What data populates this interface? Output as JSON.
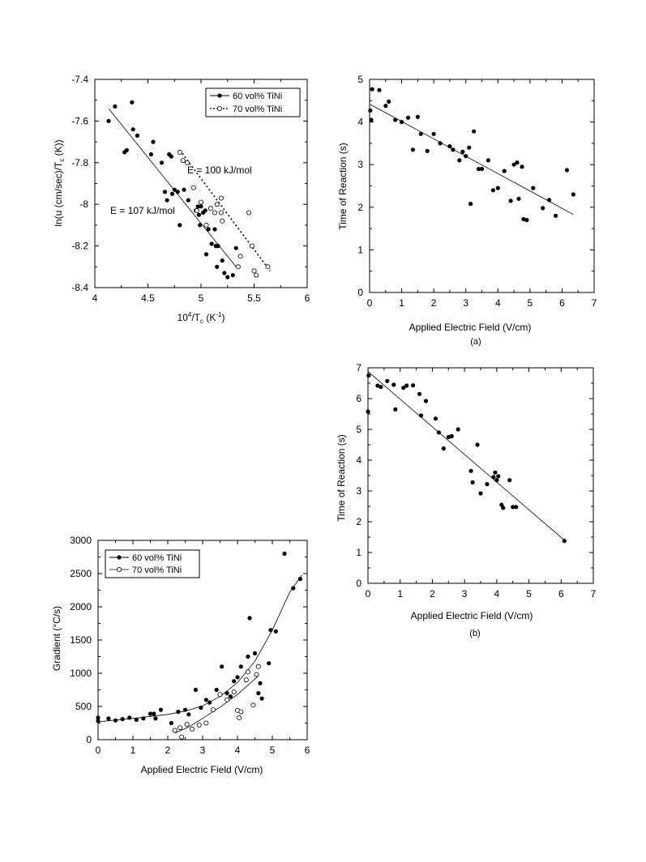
{
  "chart_data": [
    {
      "type": "scatter",
      "xlabel_main": "10",
      "xlabel_sup": "4",
      "xlabel_rest": "/T",
      "xlabel_sub": "c",
      "xlabel_unit": " (K",
      "xlabel_unit_sup": "-1",
      "xlabel_close": ")",
      "ylabel_main": "ln(u (cm/sec)/T",
      "ylabel_sub": "c",
      "ylabel_close": " (K))",
      "xlim": [
        4,
        6
      ],
      "ylim": [
        -8.4,
        -7.4
      ],
      "xticks": [
        "4",
        "4.5",
        "5",
        "5.5",
        "6"
      ],
      "yticks": [
        "-7.4",
        "-7.6",
        "-7.8",
        "-8",
        "-8.2",
        "-8.4"
      ],
      "legend": [
        "60 vol% TiNi",
        "70 vol% TiNi"
      ],
      "annotations": [
        "E = 100 kJ/mol",
        "E = 107 kJ/mol"
      ],
      "series": [
        {
          "name": "60 vol% TiNi",
          "marker": "filled",
          "points": [
            [
              4.13,
              -7.6
            ],
            [
              4.19,
              -7.53
            ],
            [
              4.28,
              -7.75
            ],
            [
              4.3,
              -7.74
            ],
            [
              4.35,
              -7.51
            ],
            [
              4.36,
              -7.64
            ],
            [
              4.4,
              -7.67
            ],
            [
              4.53,
              -7.76
            ],
            [
              4.55,
              -7.7
            ],
            [
              4.63,
              -7.8
            ],
            [
              4.66,
              -7.94
            ],
            [
              4.68,
              -7.98
            ],
            [
              4.7,
              -7.76
            ],
            [
              4.72,
              -7.77
            ],
            [
              4.73,
              -7.95
            ],
            [
              4.75,
              -7.93
            ],
            [
              4.78,
              -7.94
            ],
            [
              4.8,
              -8.1
            ],
            [
              4.84,
              -7.93
            ],
            [
              4.88,
              -7.98
            ],
            [
              4.95,
              -8.03
            ],
            [
              4.97,
              -8.01
            ],
            [
              4.98,
              -8.05
            ],
            [
              4.99,
              -8.1
            ],
            [
              5.0,
              -8.01
            ],
            [
              5.02,
              -8.04
            ],
            [
              5.04,
              -8.03
            ],
            [
              5.05,
              -8.24
            ],
            [
              5.07,
              -8.12
            ],
            [
              5.1,
              -8.19
            ],
            [
              5.13,
              -8.12
            ],
            [
              5.14,
              -8.2
            ],
            [
              5.15,
              -8.3
            ],
            [
              5.16,
              -8.2
            ],
            [
              5.2,
              -8.27
            ],
            [
              5.22,
              -8.33
            ],
            [
              5.25,
              -8.35
            ],
            [
              5.3,
              -8.34
            ],
            [
              5.33,
              -8.21
            ]
          ],
          "fit": [
            [
              4.13,
              -7.54
            ],
            [
              5.33,
              -8.3
            ]
          ]
        },
        {
          "name": "70 vol% TiNi",
          "marker": "open",
          "points": [
            [
              4.8,
              -7.75
            ],
            [
              4.83,
              -7.79
            ],
            [
              4.87,
              -7.8
            ],
            [
              4.93,
              -7.92
            ],
            [
              4.96,
              -8.03
            ],
            [
              5.0,
              -7.99
            ],
            [
              5.05,
              -8.1
            ],
            [
              5.09,
              -8.02
            ],
            [
              5.13,
              -8.04
            ],
            [
              5.15,
              -8.0
            ],
            [
              5.19,
              -8.04
            ],
            [
              5.19,
              -7.97
            ],
            [
              5.2,
              -8.08
            ],
            [
              5.35,
              -8.3
            ],
            [
              5.37,
              -8.25
            ],
            [
              5.45,
              -8.04
            ],
            [
              5.48,
              -8.2
            ],
            [
              5.5,
              -8.32
            ],
            [
              5.52,
              -8.34
            ],
            [
              5.63,
              -8.3
            ]
          ],
          "fit": [
            [
              4.8,
              -7.74
            ],
            [
              5.65,
              -8.32
            ]
          ]
        }
      ]
    },
    {
      "type": "scatter",
      "xlabel": "Applied Electric Field (V/cm)",
      "ylabel": "Time of Reaction (s)",
      "caption": "(a)",
      "xlim": [
        0,
        7
      ],
      "ylim": [
        0,
        5
      ],
      "xticks": [
        "0",
        "1",
        "2",
        "3",
        "4",
        "5",
        "6",
        "7"
      ],
      "yticks": [
        "0",
        "1",
        "2",
        "3",
        "4",
        "5"
      ],
      "series": [
        {
          "marker": "filled",
          "points": [
            [
              0.02,
              4.27
            ],
            [
              0.05,
              4.05
            ],
            [
              0.08,
              4.77
            ],
            [
              0.3,
              4.75
            ],
            [
              0.5,
              4.38
            ],
            [
              0.6,
              4.48
            ],
            [
              0.8,
              4.05
            ],
            [
              1.0,
              4.0
            ],
            [
              1.2,
              4.1
            ],
            [
              1.35,
              3.35
            ],
            [
              1.5,
              4.12
            ],
            [
              1.6,
              3.72
            ],
            [
              1.8,
              3.32
            ],
            [
              2.0,
              3.72
            ],
            [
              2.2,
              3.5
            ],
            [
              2.5,
              3.43
            ],
            [
              2.6,
              3.35
            ],
            [
              2.8,
              3.1
            ],
            [
              2.9,
              3.3
            ],
            [
              3.0,
              3.2
            ],
            [
              3.1,
              3.4
            ],
            [
              3.15,
              2.08
            ],
            [
              3.25,
              3.78
            ],
            [
              3.4,
              2.9
            ],
            [
              3.5,
              2.9
            ],
            [
              3.7,
              3.1
            ],
            [
              3.85,
              2.4
            ],
            [
              4.0,
              2.45
            ],
            [
              4.2,
              2.85
            ],
            [
              4.4,
              2.15
            ],
            [
              4.5,
              3.0
            ],
            [
              4.6,
              3.05
            ],
            [
              4.65,
              2.2
            ],
            [
              4.75,
              2.95
            ],
            [
              4.8,
              1.72
            ],
            [
              4.9,
              1.7
            ],
            [
              5.1,
              2.45
            ],
            [
              5.4,
              1.98
            ],
            [
              5.6,
              2.17
            ],
            [
              5.8,
              1.8
            ],
            [
              6.15,
              2.87
            ],
            [
              6.35,
              2.3
            ]
          ],
          "fit": [
            [
              0.0,
              4.42
            ],
            [
              6.35,
              1.83
            ]
          ]
        }
      ]
    },
    {
      "type": "scatter",
      "xlabel": "Applied Electric Field (V/cm)",
      "ylabel": "Time of Reaction (s)",
      "caption": "(b)",
      "xlim": [
        0,
        7
      ],
      "ylim": [
        0,
        7
      ],
      "xticks": [
        "0",
        "1",
        "2",
        "3",
        "4",
        "5",
        "6",
        "7"
      ],
      "yticks": [
        "0",
        "1",
        "2",
        "3",
        "4",
        "5",
        "6",
        "7"
      ],
      "series": [
        {
          "marker": "filled",
          "points": [
            [
              0.0,
              5.58
            ],
            [
              0.02,
              6.75
            ],
            [
              0.3,
              6.42
            ],
            [
              0.4,
              6.38
            ],
            [
              0.6,
              6.57
            ],
            [
              0.8,
              6.45
            ],
            [
              0.85,
              5.65
            ],
            [
              1.1,
              6.35
            ],
            [
              1.2,
              6.42
            ],
            [
              1.4,
              6.43
            ],
            [
              1.6,
              6.15
            ],
            [
              1.65,
              5.45
            ],
            [
              1.8,
              5.92
            ],
            [
              2.1,
              5.35
            ],
            [
              2.2,
              4.9
            ],
            [
              2.35,
              4.38
            ],
            [
              2.5,
              4.75
            ],
            [
              2.6,
              4.78
            ],
            [
              2.8,
              5.0
            ],
            [
              3.2,
              3.65
            ],
            [
              3.25,
              3.28
            ],
            [
              3.4,
              4.5
            ],
            [
              3.5,
              2.92
            ],
            [
              3.7,
              3.22
            ],
            [
              3.9,
              3.45
            ],
            [
              3.95,
              3.6
            ],
            [
              4.0,
              3.35
            ],
            [
              4.05,
              3.48
            ],
            [
              4.15,
              2.55
            ],
            [
              4.2,
              2.45
            ],
            [
              4.4,
              3.35
            ],
            [
              4.5,
              2.48
            ],
            [
              4.6,
              2.48
            ],
            [
              6.1,
              1.38
            ]
          ],
          "fit": [
            [
              0.0,
              6.88
            ],
            [
              6.1,
              1.4
            ]
          ]
        }
      ]
    },
    {
      "type": "scatter",
      "xlabel": "Applied Electric Field (V/cm)",
      "ylabel": "Gradient (°C/s)",
      "xlim": [
        0,
        6
      ],
      "ylim": [
        0,
        3000
      ],
      "xticks": [
        "0",
        "1",
        "2",
        "3",
        "4",
        "5",
        "6"
      ],
      "yticks": [
        "0",
        "500",
        "1000",
        "1500",
        "2000",
        "2500",
        "3000"
      ],
      "legend": [
        "60 vol% TiNi",
        "70 vol% TiNi"
      ],
      "series": [
        {
          "name": "60 vol% TiNi",
          "marker": "filled",
          "points": [
            [
              0.0,
              280
            ],
            [
              0.0,
              330
            ],
            [
              0.3,
              320
            ],
            [
              0.5,
              290
            ],
            [
              0.7,
              310
            ],
            [
              0.9,
              330
            ],
            [
              1.1,
              300
            ],
            [
              1.3,
              320
            ],
            [
              1.5,
              390
            ],
            [
              1.6,
              390
            ],
            [
              1.65,
              320
            ],
            [
              1.8,
              450
            ],
            [
              2.1,
              250
            ],
            [
              2.3,
              420
            ],
            [
              2.5,
              450
            ],
            [
              2.6,
              380
            ],
            [
              2.8,
              750
            ],
            [
              2.95,
              480
            ],
            [
              3.1,
              600
            ],
            [
              3.2,
              560
            ],
            [
              3.4,
              750
            ],
            [
              3.55,
              1100
            ],
            [
              3.7,
              700
            ],
            [
              3.8,
              650
            ],
            [
              3.9,
              880
            ],
            [
              4.0,
              940
            ],
            [
              4.1,
              1100
            ],
            [
              4.3,
              1250
            ],
            [
              4.35,
              1830
            ],
            [
              4.5,
              1300
            ],
            [
              4.6,
              700
            ],
            [
              4.65,
              850
            ],
            [
              4.7,
              620
            ],
            [
              4.9,
              1150
            ],
            [
              4.95,
              1650
            ],
            [
              5.1,
              1630
            ],
            [
              5.35,
              2800
            ],
            [
              5.6,
              2280
            ],
            [
              5.8,
              2420
            ]
          ],
          "fit": [
            [
              0.0,
              270
            ],
            [
              1.0,
              320
            ],
            [
              2.0,
              380
            ],
            [
              2.5,
              430
            ],
            [
              3.0,
              510
            ],
            [
              3.5,
              650
            ],
            [
              4.0,
              860
            ],
            [
              4.5,
              1180
            ],
            [
              5.0,
              1650
            ],
            [
              5.5,
              2220
            ],
            [
              5.85,
              2480
            ]
          ]
        },
        {
          "name": "70 vol% TiNi",
          "marker": "open",
          "points": [
            [
              2.2,
              140
            ],
            [
              2.35,
              180
            ],
            [
              2.4,
              40
            ],
            [
              2.55,
              230
            ],
            [
              2.7,
              160
            ],
            [
              2.9,
              220
            ],
            [
              3.1,
              250
            ],
            [
              3.3,
              450
            ],
            [
              3.5,
              680
            ],
            [
              3.7,
              600
            ],
            [
              3.9,
              720
            ],
            [
              4.0,
              440
            ],
            [
              4.05,
              330
            ],
            [
              4.1,
              420
            ],
            [
              4.25,
              900
            ],
            [
              4.3,
              1020
            ],
            [
              4.45,
              520
            ],
            [
              4.55,
              980
            ],
            [
              4.6,
              1100
            ]
          ],
          "fit": [
            [
              2.2,
              100
            ],
            [
              2.6,
              190
            ],
            [
              3.0,
              320
            ],
            [
              3.5,
              490
            ],
            [
              4.0,
              680
            ],
            [
              4.6,
              960
            ]
          ]
        }
      ]
    }
  ]
}
